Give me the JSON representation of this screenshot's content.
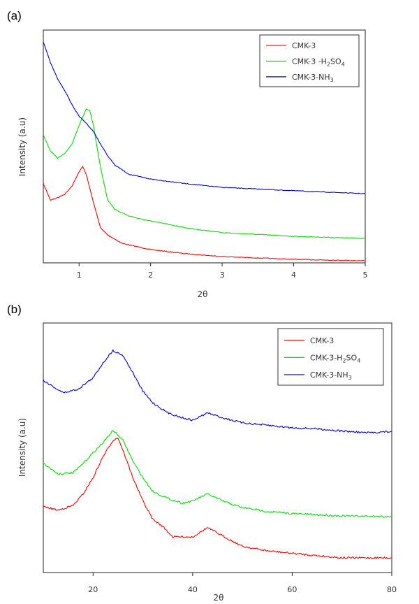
{
  "chart_data": [
    {
      "panel_label": "(a)",
      "type": "line",
      "xlabel": "2θ",
      "ylabel": "Intensity (a.u)",
      "xlim": [
        0.5,
        5
      ],
      "ylim": [
        0,
        100
      ],
      "xticks": [
        1,
        2,
        3,
        4,
        5
      ],
      "y_ticks_shown": false,
      "grid": false,
      "legend_position": "top-right",
      "series": [
        {
          "name": "CMK-3",
          "legend_main": "CMK-3",
          "legend_sub": "",
          "legend_tail": "",
          "color": "#ff0000",
          "x": [
            0.5,
            0.6,
            0.7,
            0.8,
            0.9,
            1.0,
            1.05,
            1.1,
            1.2,
            1.3,
            1.4,
            1.6,
            2.0,
            2.5,
            3,
            4,
            5
          ],
          "y": [
            34,
            27,
            28,
            29.5,
            33,
            39,
            41.5,
            38,
            26,
            15,
            12,
            8.4,
            5.7,
            3.9,
            2.7,
            1.5,
            0.9
          ]
        },
        {
          "name": "CMK-3 -H2SO4",
          "legend_main": "CMK-3 -H",
          "legend_sub": "2",
          "legend_tail": "SO",
          "legend_sub2": "4",
          "color": "#00e000",
          "x": [
            0.5,
            0.6,
            0.7,
            0.8,
            0.9,
            1.0,
            1.1,
            1.15,
            1.2,
            1.3,
            1.4,
            1.5,
            1.7,
            2,
            2.5,
            3,
            4,
            5
          ],
          "y": [
            55,
            48,
            45,
            47,
            51,
            59,
            66,
            65.5,
            59,
            41,
            27,
            23,
            20,
            18,
            15,
            13,
            11.4,
            10.5
          ]
        },
        {
          "name": "CMK-3-NH3",
          "legend_main": "CMK-3-NH",
          "legend_sub": "3",
          "legend_tail": "",
          "color": "#0000d0",
          "x": [
            0.5,
            0.6,
            0.7,
            0.8,
            0.9,
            1.0,
            1.1,
            1.2,
            1.3,
            1.4,
            1.5,
            1.7,
            2,
            2.5,
            3,
            4,
            5
          ],
          "y": [
            95,
            86,
            79,
            74,
            68,
            63,
            60,
            56.5,
            51,
            46,
            42,
            38,
            36,
            34,
            32.4,
            31,
            29.7
          ]
        }
      ]
    },
    {
      "panel_label": "(b)",
      "type": "line",
      "xlabel": "2θ",
      "ylabel": "Intensity (a.u)",
      "xlim": [
        10,
        80
      ],
      "ylim": [
        0,
        100
      ],
      "xticks": [
        20,
        40,
        60,
        80
      ],
      "y_ticks_shown": false,
      "grid": false,
      "legend_position": "top-right",
      "series": [
        {
          "name": "CMK-3",
          "legend_main": "CMK-3",
          "legend_sub": "",
          "legend_tail": "",
          "color": "#ff0000",
          "x": [
            10,
            13,
            16,
            18,
            20,
            22,
            24,
            25,
            26,
            28,
            30,
            32,
            34,
            36,
            40,
            43,
            46,
            50,
            55,
            60,
            70,
            80
          ],
          "y": [
            26.4,
            25,
            26.9,
            31.5,
            38,
            46.5,
            53,
            54,
            49,
            38,
            28.7,
            21.3,
            18.5,
            14.3,
            14.3,
            18,
            14.7,
            10.5,
            8.7,
            7.7,
            5.9,
            5.9
          ]
        },
        {
          "name": "CMK-3-H2SO4",
          "legend_main": "CMK-3-H",
          "legend_sub": "2",
          "legend_tail": "SO",
          "legend_sub2": "4",
          "color": "#00e000",
          "x": [
            10,
            13,
            16,
            18,
            20,
            22,
            24,
            26,
            28,
            30,
            32,
            35,
            38,
            40,
            43,
            46,
            50,
            55,
            60,
            70,
            80
          ],
          "y": [
            43.7,
            39.5,
            40,
            43.7,
            48,
            52,
            57,
            53,
            44.6,
            38,
            32.5,
            29.7,
            27.8,
            28.7,
            31.5,
            28.7,
            26,
            24.5,
            23.6,
            22.7,
            22.4
          ]
        },
        {
          "name": "CMK-3-NH3",
          "legend_main": "CMK-3-NH",
          "legend_sub": "3",
          "legend_tail": "",
          "color": "#0000d0",
          "x": [
            10,
            14,
            17,
            20,
            22,
            24,
            26,
            28,
            30,
            32,
            35,
            38,
            40,
            43,
            46,
            50,
            55,
            60,
            65,
            70,
            75,
            80
          ],
          "y": [
            77,
            72,
            73.5,
            78,
            84,
            89,
            87,
            80,
            72.6,
            68,
            64,
            62,
            61,
            64,
            62,
            60,
            59,
            58,
            57.6,
            56.7,
            56,
            56.5
          ]
        }
      ]
    }
  ]
}
